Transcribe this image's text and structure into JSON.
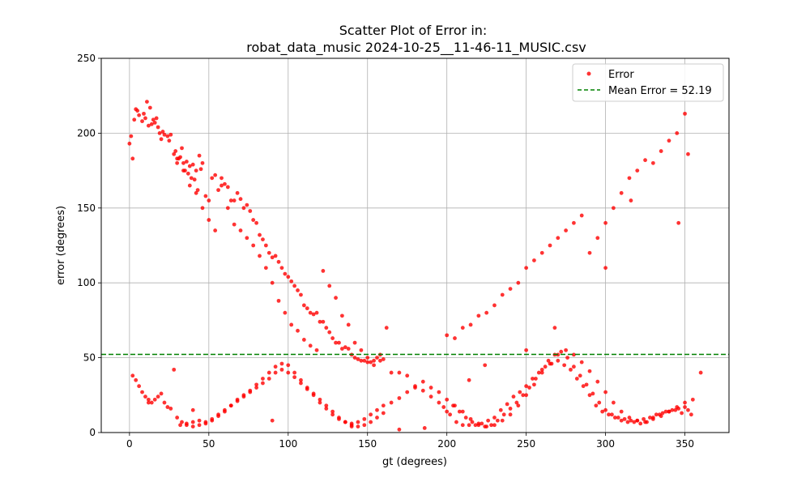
{
  "chart_data": {
    "type": "scatter",
    "title_lines": [
      "Scatter Plot of Error in:",
      "robat_data_music 2024-10-25__11-46-11_MUSIC.csv"
    ],
    "xlabel": "gt (degrees)",
    "ylabel": "error (degrees)",
    "xlim": [
      -17.8,
      377.8
    ],
    "ylim": [
      0,
      250
    ],
    "xticks": [
      0,
      50,
      100,
      150,
      200,
      250,
      300,
      350
    ],
    "yticks": [
      0,
      50,
      100,
      150,
      200,
      250
    ],
    "grid": true,
    "legend_position": "top-right",
    "series": [
      {
        "name": "Error",
        "kind": "scatter",
        "color": "#ff0000",
        "x": [
          0,
          1,
          2,
          3,
          4,
          5,
          6,
          8,
          9,
          10,
          11,
          12,
          13,
          14,
          15,
          16,
          17,
          18,
          19,
          20,
          21,
          22,
          24,
          25,
          26,
          28,
          29,
          30,
          31,
          32,
          33,
          34,
          35,
          36,
          37,
          38,
          39,
          40,
          41,
          42,
          43,
          44,
          45,
          46,
          48,
          50,
          52,
          54,
          56,
          58,
          60,
          62,
          64,
          66,
          68,
          70,
          72,
          74,
          76,
          78,
          80,
          82,
          84,
          86,
          88,
          90,
          92,
          94,
          96,
          98,
          100,
          102,
          104,
          106,
          108,
          110,
          112,
          114,
          116,
          118,
          120,
          122,
          124,
          126,
          128,
          130,
          132,
          134,
          136,
          138,
          140,
          142,
          144,
          146,
          148,
          150,
          152,
          154,
          156,
          158,
          160,
          165,
          170,
          175,
          180,
          185,
          190,
          195,
          198,
          202,
          206,
          210,
          214,
          218,
          222,
          226,
          230,
          234,
          238,
          242,
          246,
          250,
          254,
          258,
          262,
          266,
          270,
          274,
          278,
          282,
          286,
          290,
          294,
          298,
          302,
          306,
          310,
          314,
          318,
          322,
          326,
          330,
          334,
          338,
          342,
          346,
          350,
          352,
          354,
          2,
          4,
          6,
          8,
          10,
          12,
          14,
          16,
          18,
          20,
          22,
          24,
          26,
          30,
          33,
          36,
          40,
          44,
          48,
          52,
          56,
          60,
          64,
          68,
          72,
          76,
          80,
          84,
          88,
          92,
          96,
          100,
          104,
          108,
          112,
          116,
          120,
          124,
          128,
          132,
          136,
          140,
          144,
          148,
          152,
          156,
          160,
          165,
          170,
          175,
          180,
          185,
          190,
          195,
          200,
          205,
          210,
          215,
          220,
          225,
          230,
          235,
          240,
          245,
          250,
          255,
          260,
          265,
          270,
          275,
          280,
          285,
          290,
          295,
          300,
          305,
          310,
          315,
          320,
          325,
          330,
          335,
          340,
          345,
          350,
          355,
          360,
          28,
          32,
          36,
          40,
          44,
          48,
          52,
          56,
          60,
          64,
          68,
          72,
          76,
          80,
          84,
          88,
          92,
          96,
          100,
          104,
          108,
          112,
          116,
          120,
          124,
          128,
          132,
          136,
          140,
          144,
          148,
          152,
          156,
          160,
          200,
          204,
          208,
          212,
          216,
          220,
          224,
          228,
          232,
          236,
          240,
          244,
          248,
          252,
          256,
          260,
          264,
          268,
          272,
          276,
          280,
          284,
          288,
          292,
          296,
          300,
          304,
          308,
          312,
          316,
          320,
          324,
          328,
          332,
          336,
          340,
          344,
          348,
          352,
          30,
          34,
          38,
          42,
          46,
          50,
          54,
          58,
          62,
          66,
          70,
          74,
          78,
          82,
          86,
          90,
          94,
          98,
          102,
          106,
          110,
          114,
          118,
          122,
          126,
          130,
          134,
          138,
          142,
          146,
          150,
          154,
          158,
          162,
          200,
          205,
          210,
          215,
          220,
          225,
          230,
          235,
          240,
          245,
          250,
          255,
          260,
          265,
          270,
          275,
          280,
          285,
          290,
          295,
          300,
          305,
          310,
          315,
          320,
          325,
          330,
          335,
          340,
          345,
          350,
          12,
          40,
          90,
          140,
          170,
          186,
          214,
          224,
          250,
          268,
          300,
          316,
          346
        ],
        "y": [
          193,
          198,
          183,
          209,
          216,
          215,
          212,
          208,
          213,
          210,
          221,
          205,
          217,
          206,
          209,
          207,
          210,
          204,
          200,
          196,
          201,
          199,
          198,
          195,
          199,
          186,
          188,
          183,
          183,
          184,
          190,
          180,
          175,
          181,
          173,
          178,
          170,
          179,
          169,
          175,
          162,
          185,
          176,
          180,
          158,
          155,
          170,
          172,
          162,
          170,
          166,
          164,
          155,
          155,
          160,
          156,
          150,
          152,
          148,
          142,
          140,
          132,
          129,
          125,
          120,
          117,
          118,
          114,
          110,
          106,
          104,
          101,
          98,
          95,
          92,
          85,
          83,
          80,
          79,
          80,
          74,
          74,
          70,
          67,
          63,
          60,
          60,
          56,
          57,
          56,
          52,
          50,
          49,
          48,
          48,
          47,
          47,
          48,
          50,
          48,
          49,
          40,
          40,
          38,
          30,
          28,
          24,
          20,
          17,
          12,
          7,
          5,
          5,
          5,
          6,
          8,
          10,
          15,
          19,
          24,
          27,
          31,
          36,
          40,
          44,
          46,
          48,
          45,
          42,
          36,
          31,
          25,
          18,
          14,
          12,
          10,
          8,
          7,
          7,
          6,
          7,
          10,
          12,
          14,
          15,
          16,
          17,
          15,
          12,
          38,
          35,
          31,
          27,
          24,
          22,
          20,
          22,
          24,
          26,
          20,
          17,
          16,
          10,
          7,
          5,
          4,
          5,
          6,
          8,
          11,
          14,
          18,
          22,
          25,
          27,
          30,
          33,
          36,
          40,
          42,
          40,
          37,
          33,
          29,
          25,
          20,
          16,
          12,
          9,
          7,
          6,
          7,
          9,
          12,
          15,
          18,
          20,
          23,
          27,
          31,
          34,
          30,
          27,
          22,
          18,
          14,
          9,
          6,
          4,
          5,
          8,
          12,
          18,
          25,
          32,
          40,
          46,
          52,
          55,
          52,
          47,
          41,
          34,
          27,
          20,
          14,
          10,
          8,
          7,
          9,
          11,
          14,
          17,
          20,
          22,
          40,
          42,
          5,
          6,
          7,
          8,
          7,
          9,
          12,
          15,
          18,
          21,
          24,
          28,
          32,
          36,
          40,
          44,
          46,
          45,
          40,
          35,
          30,
          26,
          22,
          18,
          14,
          10,
          7,
          5,
          4,
          5,
          7,
          10,
          13,
          14,
          18,
          14,
          10,
          7,
          5,
          4,
          5,
          8,
          12,
          16,
          20,
          25,
          30,
          36,
          42,
          48,
          52,
          54,
          50,
          44,
          38,
          32,
          26,
          20,
          15,
          12,
          10,
          9,
          8,
          8,
          9,
          10,
          12,
          13,
          14,
          15,
          13,
          186,
          180,
          175,
          165,
          160,
          150,
          142,
          135,
          165,
          150,
          139,
          135,
          130,
          125,
          118,
          110,
          100,
          88,
          80,
          72,
          68,
          62,
          58,
          55,
          108,
          98,
          90,
          78,
          72,
          60,
          55,
          50,
          45,
          52,
          70,
          65,
          63,
          70,
          72,
          78,
          80,
          85,
          92,
          96,
          100,
          110,
          115,
          120,
          125,
          130,
          135,
          140,
          145,
          120,
          130,
          140,
          150,
          160,
          170,
          175,
          182,
          180,
          188,
          195,
          200,
          213,
          20,
          15,
          8,
          4,
          2,
          3,
          35,
          45,
          55,
          70,
          110,
          155,
          140
        ]
      }
    ],
    "mean_line": {
      "value": 52.19,
      "color": "#008000"
    },
    "legend": [
      {
        "label": "Error",
        "marker": "dot",
        "color": "#ff0000"
      },
      {
        "label": "Mean Error = 52.19",
        "marker": "dashed-line",
        "color": "#008000"
      }
    ]
  }
}
